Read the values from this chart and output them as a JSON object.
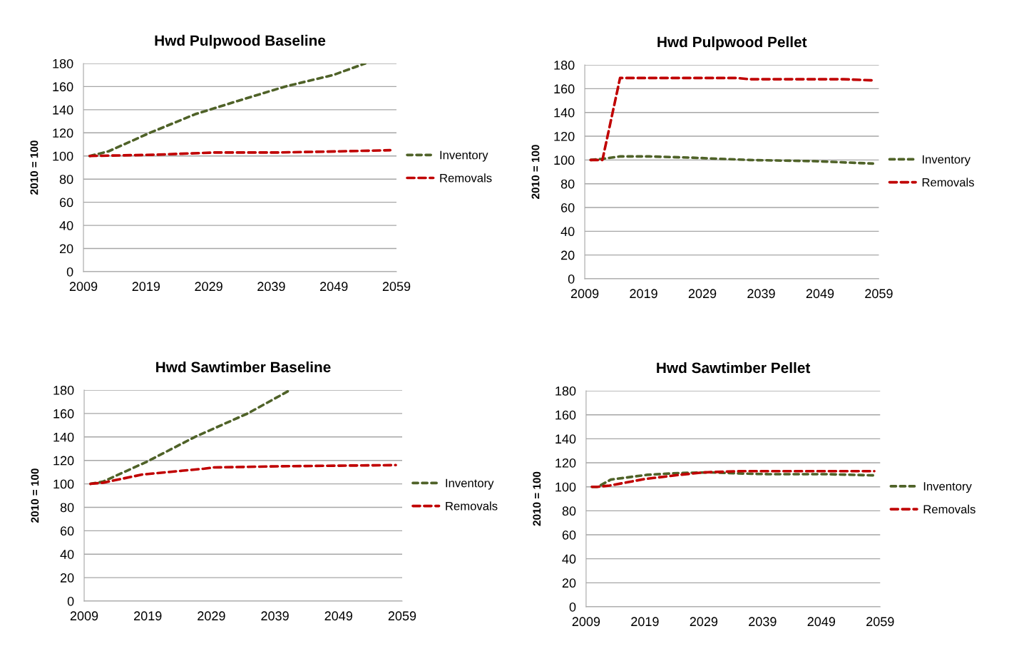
{
  "chart_data": [
    {
      "type": "line",
      "title": "Hwd Pulpwood Baseline",
      "ylabel": "2010 = 100",
      "xlim": [
        2009,
        2059
      ],
      "xticks": [
        2009,
        2019,
        2029,
        2039,
        2049,
        2059
      ],
      "ylim": [
        0,
        180
      ],
      "yticks": [
        0,
        20,
        40,
        60,
        80,
        100,
        120,
        140,
        160,
        180
      ],
      "grid": "y",
      "legend": "right",
      "line_style": "dashed",
      "series": [
        {
          "name": "Inventory",
          "color": "#4f6228",
          "x": [
            2010,
            2013,
            2019.6,
            2026.8,
            2033.6,
            2041.2,
            2048.9,
            2054
          ],
          "values": [
            100,
            104,
            120,
            136,
            147.5,
            160,
            170,
            180
          ]
        },
        {
          "name": "Removals",
          "color": "#c00000",
          "x": [
            2010,
            2020,
            2030,
            2040,
            2050,
            2058
          ],
          "values": [
            100,
            101,
            103,
            103,
            104,
            105
          ]
        }
      ]
    },
    {
      "type": "line",
      "title": "Hwd Pulpwood Pellet",
      "ylabel": "2010 = 100",
      "xlim": [
        2009,
        2059
      ],
      "xticks": [
        2009,
        2019,
        2029,
        2039,
        2049,
        2059
      ],
      "ylim": [
        0,
        180
      ],
      "yticks": [
        0,
        20,
        40,
        60,
        80,
        100,
        120,
        140,
        160,
        180
      ],
      "grid": "y",
      "legend": "right",
      "line_style": "dashed",
      "series": [
        {
          "name": "Inventory",
          "color": "#4f6228",
          "x": [
            2010,
            2012,
            2015,
            2020,
            2027,
            2037,
            2048,
            2058
          ],
          "values": [
            100,
            101,
            103,
            103,
            102,
            100,
            99,
            97
          ]
        },
        {
          "name": "Removals",
          "color": "#c00000",
          "x": [
            2010,
            2012,
            2015,
            2035,
            2037,
            2053,
            2058
          ],
          "values": [
            100,
            100,
            169,
            169,
            168,
            168,
            167
          ]
        }
      ]
    },
    {
      "type": "line",
      "title": "Hwd Sawtimber Baseline",
      "ylabel": "2010 = 100",
      "xlim": [
        2009,
        2059
      ],
      "xticks": [
        2009,
        2019,
        2029,
        2039,
        2049,
        2059
      ],
      "ylim": [
        0,
        180
      ],
      "yticks": [
        0,
        20,
        40,
        60,
        80,
        100,
        120,
        140,
        160,
        180
      ],
      "grid": "y",
      "legend": "right",
      "line_style": "dashed",
      "series": [
        {
          "name": "Inventory",
          "color": "#4f6228",
          "x": [
            2010,
            2012,
            2018.9,
            2026.4,
            2034.7,
            2041.4
          ],
          "values": [
            100,
            102,
            119,
            140,
            160,
            180
          ]
        },
        {
          "name": "Removals",
          "color": "#c00000",
          "x": [
            2010,
            2012,
            2018.2,
            2027.9,
            2029.4,
            2040,
            2058
          ],
          "values": [
            100,
            101,
            108,
            113,
            114,
            115,
            116
          ]
        }
      ]
    },
    {
      "type": "line",
      "title": "Hwd Sawtimber Pellet",
      "ylabel": "2010 = 100",
      "xlim": [
        2009,
        2059
      ],
      "xticks": [
        2009,
        2019,
        2029,
        2039,
        2049,
        2059
      ],
      "ylim": [
        0,
        180
      ],
      "yticks": [
        0,
        20,
        40,
        60,
        80,
        100,
        120,
        140,
        160,
        180
      ],
      "grid": "y",
      "legend": "right",
      "line_style": "dashed",
      "series": [
        {
          "name": "Inventory",
          "color": "#4f6228",
          "x": [
            2010,
            2011,
            2013.2,
            2019.4,
            2024.9,
            2030,
            2036,
            2040,
            2050,
            2058
          ],
          "values": [
            100,
            100,
            106,
            110,
            111.5,
            112,
            111,
            110.5,
            110.5,
            109.5
          ]
        },
        {
          "name": "Removals",
          "color": "#c00000",
          "x": [
            2010,
            2011,
            2013,
            2019,
            2025,
            2029,
            2035,
            2058
          ],
          "values": [
            100,
            100,
            101,
            106.5,
            110,
            112,
            113,
            113
          ]
        }
      ]
    }
  ]
}
